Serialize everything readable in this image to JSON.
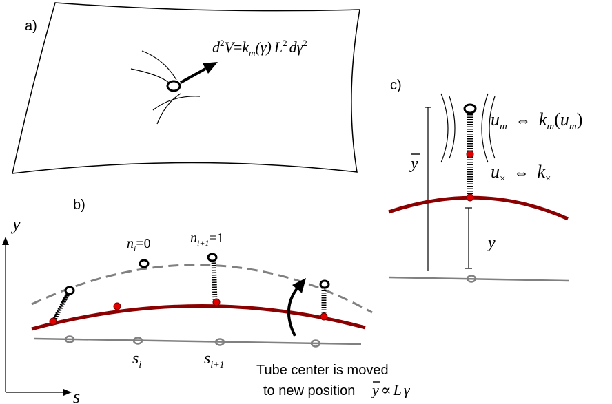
{
  "panels": {
    "a": {
      "label": "a)"
    },
    "b": {
      "label": "b)"
    },
    "c": {
      "label": "c)"
    }
  },
  "panel_a": {
    "equation": {
      "lhs_d": "d",
      "lhs_sup": "2",
      "lhs_v": "V",
      "eq": "=",
      "k": "k",
      "k_sub": "m",
      "arg": "(γ)",
      "L": "L",
      "L_sup": "2",
      "d": "d",
      "gamma": "γ",
      "g_sup": "2"
    }
  },
  "panel_b": {
    "axis_y": "y",
    "axis_s": "s",
    "n_i": {
      "n": "n",
      "sub": "i",
      "val": "=0"
    },
    "n_i1": {
      "n": "n",
      "sub": "i+1",
      "val": "=1"
    },
    "s_i": {
      "s": "s",
      "sub": "i"
    },
    "s_i1": {
      "s": "s",
      "sub": "i+1"
    },
    "caption_line1": "Tube center is moved",
    "caption_line2": "to new position",
    "caption_math": {
      "ybar": "y",
      "prop": "∝",
      "L": "L",
      "gamma": "γ"
    }
  },
  "panel_c": {
    "ybar": "y",
    "u_m": {
      "u": "u",
      "sub": "m"
    },
    "iff": "⇔",
    "k_m": {
      "k": "k",
      "sub": "m",
      "arg_open": "(",
      "u": "u",
      "arg_sub": "m",
      "arg_close": ")"
    },
    "u_x": {
      "u": "u",
      "sub": "×"
    },
    "k_x": {
      "k": "k",
      "sub": "×"
    },
    "y": "y"
  },
  "colors": {
    "tube": "#8b0000",
    "surface": "#808080",
    "node": "#e00000",
    "ink": "#000000"
  }
}
